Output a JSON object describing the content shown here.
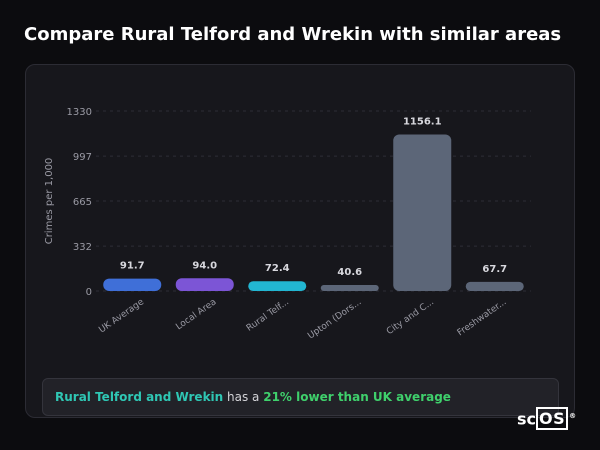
{
  "page": {
    "title": "Compare Rural Telford and Wrekin with similar areas"
  },
  "summary": {
    "area": "Rural Telford and Wrekin",
    "connector": " has a ",
    "stat": "21% lower than UK average"
  },
  "logo": {
    "text_sc": "sc",
    "text_os": "OS",
    "reg": "®"
  },
  "chart_data": {
    "type": "bar",
    "title": "",
    "xlabel": "",
    "ylabel": "Crimes per 1,000",
    "ylim": [
      0,
      1330
    ],
    "yticks": [
      "0",
      "332",
      "665",
      "997",
      "1330"
    ],
    "ytick_values": [
      0,
      332,
      665,
      997,
      1330
    ],
    "grid": true,
    "categories": [
      "UK Average",
      "Local Area",
      "Rural Telf...",
      "Upton (Dors...",
      "City and C...",
      "Freshwater..."
    ],
    "values": [
      91.7,
      94.0,
      72.4,
      40.6,
      1156.1,
      67.7
    ],
    "value_labels": [
      "91.7",
      "94.0",
      "72.4",
      "40.6",
      "1156.1",
      "67.7"
    ],
    "colors": [
      "#3f6fd8",
      "#7c55d6",
      "#22b6d2",
      "#5c6678",
      "#5c6678",
      "#5c6678"
    ]
  }
}
